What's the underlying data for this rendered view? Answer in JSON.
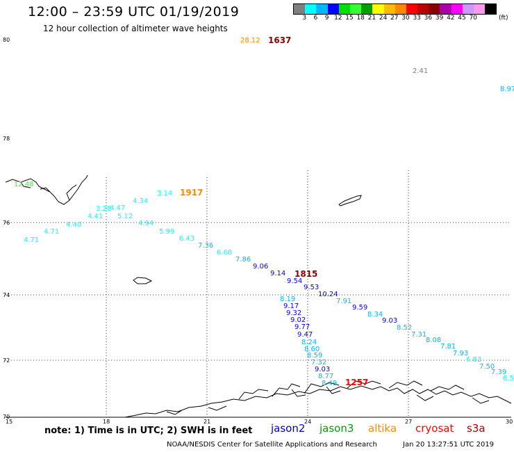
{
  "header": {
    "title": "12:00 – 23:59 UTC 01/19/2019",
    "subtitle": "12 hour collection of altimeter wave heights"
  },
  "colorbar": {
    "colors": [
      "#7f7f7f",
      "#00ffff",
      "#00b6ff",
      "#0000ff",
      "#00e000",
      "#33ff33",
      "#00a000",
      "#ffff00",
      "#ffbb00",
      "#ff8800",
      "#ff0000",
      "#bb0000",
      "#880000",
      "#aa00aa",
      "#ff00ff",
      "#cc99ff",
      "#ff99ee",
      "#000000"
    ],
    "tick_labels": [
      "3",
      "6",
      "9",
      "12",
      "15",
      "18",
      "21",
      "24",
      "27",
      "30",
      "33",
      "36",
      "39",
      "42",
      "45",
      "70"
    ],
    "unit": "(ft)"
  },
  "map": {
    "lat_labels": [
      "80",
      "78",
      "76",
      "74",
      "72",
      "70"
    ],
    "lon_labels": [
      "15",
      "18",
      "21",
      "24",
      "27",
      "30"
    ],
    "pass_labels": [
      {
        "text": "1637",
        "color": "#880000"
      },
      {
        "text": "1917",
        "color": "#ff8800"
      },
      {
        "text": "1815",
        "color": "#880000"
      },
      {
        "text": "1257",
        "color": "#ff0000"
      }
    ],
    "wave_values": [
      {
        "text": "28.12",
        "color": "#ff8800"
      },
      {
        "text": "2.41",
        "color": "#7f7f7f"
      },
      {
        "text": "8.97",
        "color": "#00b6ff"
      },
      {
        "text": "12.48",
        "color": "#33ff33"
      },
      {
        "text": "3.14",
        "color": "#00ffff"
      },
      {
        "text": "4.34",
        "color": "#00ffff"
      },
      {
        "text": "3.28",
        "color": "#00ffff"
      },
      {
        "text": "4.47",
        "color": "#00ffff"
      },
      {
        "text": "4.41",
        "color": "#00ffff"
      },
      {
        "text": "5.12",
        "color": "#00ffff"
      },
      {
        "text": "4.40",
        "color": "#00ffff"
      },
      {
        "text": "4.94",
        "color": "#00ffff"
      },
      {
        "text": "4.71",
        "color": "#00ffff"
      },
      {
        "text": "4.71",
        "color": "#00ffff"
      },
      {
        "text": "5.99",
        "color": "#00ffff"
      },
      {
        "text": "6.43",
        "color": "#00ffff"
      },
      {
        "text": "7.36",
        "color": "#00b6ff"
      },
      {
        "text": "6.68",
        "color": "#00ffff"
      },
      {
        "text": "7.86",
        "color": "#00b6ff"
      },
      {
        "text": "9.06",
        "color": "#0000ff"
      },
      {
        "text": "9.14",
        "color": "#0000ff"
      },
      {
        "text": "9.54",
        "color": "#0000ff"
      },
      {
        "text": "9.53",
        "color": "#0000ff"
      },
      {
        "text": "10.24",
        "color": "#0000ff"
      },
      {
        "text": "7.91",
        "color": "#00b6ff"
      },
      {
        "text": "8.19",
        "color": "#00b6ff"
      },
      {
        "text": "9.17",
        "color": "#0000ff"
      },
      {
        "text": "9.59",
        "color": "#0000ff"
      },
      {
        "text": "9.32",
        "color": "#0000ff"
      },
      {
        "text": "8.34",
        "color": "#00b6ff"
      },
      {
        "text": "9.02",
        "color": "#0000ff"
      },
      {
        "text": "9.03",
        "color": "#0000ff"
      },
      {
        "text": "9.77",
        "color": "#0000ff"
      },
      {
        "text": "8.52",
        "color": "#00b6ff"
      },
      {
        "text": "7.31",
        "color": "#00b6ff"
      },
      {
        "text": "9.47",
        "color": "#0000ff"
      },
      {
        "text": "8.24",
        "color": "#00b6ff"
      },
      {
        "text": "8.08",
        "color": "#00b6ff"
      },
      {
        "text": "7.81",
        "color": "#00b6ff"
      },
      {
        "text": "8.60",
        "color": "#00b6ff"
      },
      {
        "text": "7.93",
        "color": "#00b6ff"
      },
      {
        "text": "8.59",
        "color": "#00b6ff"
      },
      {
        "text": "6.83",
        "color": "#00ffff"
      },
      {
        "text": "7.32",
        "color": "#00b6ff"
      },
      {
        "text": "7.50",
        "color": "#00b6ff"
      },
      {
        "text": "9.03",
        "color": "#0000ff"
      },
      {
        "text": "7.39",
        "color": "#00b6ff"
      },
      {
        "text": "8.77",
        "color": "#00b6ff"
      },
      {
        "text": "6.5",
        "color": "#00ffff"
      },
      {
        "text": "8.49",
        "color": "#00b6ff"
      }
    ]
  },
  "footer": {
    "note": "note:  1) Time is in UTC;  2) SWH is in feet",
    "satellites": [
      {
        "text": "jason2",
        "color": "#0000cc"
      },
      {
        "text": "jason3",
        "color": "#00a000"
      },
      {
        "text": "altika",
        "color": "#ff8800"
      },
      {
        "text": "cryosat",
        "color": "#ff0000"
      },
      {
        "text": "s3a",
        "color": "#aa0000"
      }
    ],
    "credit": "NOAA/NESDIS Center for Satellite Applications and Research",
    "timestamp": "Jan 20 13:27:51 UTC 2019"
  }
}
